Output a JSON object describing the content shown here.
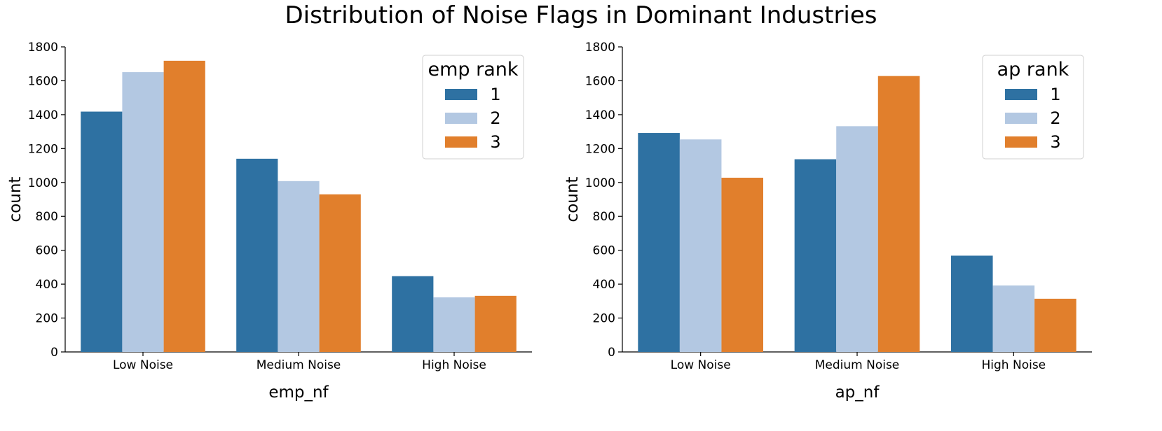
{
  "title": "Distribution of Noise Flags in Dominant Industries",
  "chart_data": [
    {
      "type": "bar",
      "xlabel": "emp_nf",
      "ylabel": "count",
      "categories": [
        "Low Noise",
        "Medium Noise",
        "High Noise"
      ],
      "ylim": [
        0,
        1800
      ],
      "yticks": [
        0,
        200,
        400,
        600,
        800,
        1000,
        1200,
        1400,
        1600,
        1800
      ],
      "legend": {
        "title": "emp rank",
        "placement": "top-right"
      },
      "series": [
        {
          "name": "1",
          "color": "#2e71a2",
          "values": [
            1418,
            1140,
            447
          ]
        },
        {
          "name": "2",
          "color": "#b3c8e2",
          "values": [
            1651,
            1008,
            322
          ]
        },
        {
          "name": "3",
          "color": "#e17f2c",
          "values": [
            1718,
            930,
            331
          ]
        }
      ]
    },
    {
      "type": "bar",
      "xlabel": "ap_nf",
      "ylabel": "count",
      "categories": [
        "Low Noise",
        "Medium Noise",
        "High Noise"
      ],
      "ylim": [
        0,
        1800
      ],
      "yticks": [
        0,
        200,
        400,
        600,
        800,
        1000,
        1200,
        1400,
        1600,
        1800
      ],
      "legend": {
        "title": "ap rank",
        "placement": "top-right"
      },
      "series": [
        {
          "name": "1",
          "color": "#2e71a2",
          "values": [
            1292,
            1137,
            568
          ]
        },
        {
          "name": "2",
          "color": "#b3c8e2",
          "values": [
            1254,
            1332,
            392
          ]
        },
        {
          "name": "3",
          "color": "#e17f2c",
          "values": [
            1028,
            1628,
            314
          ]
        }
      ]
    }
  ]
}
